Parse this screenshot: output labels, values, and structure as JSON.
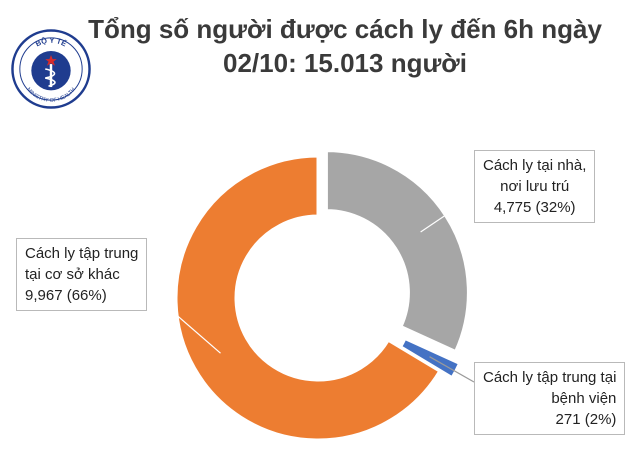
{
  "title_line1": "Tổng số người được cách ly đến 6h ngày",
  "title_line2": "02/10: 15.013 người",
  "logo": {
    "top_text": "BỘ Y TẾ",
    "bottom_text": "MINISTRY OF HEALTH",
    "color": "#1f3c8f"
  },
  "chart_data": {
    "type": "pie",
    "style": "donut",
    "title": "Tổng số người được cách ly đến 6h ngày 02/10: 15.013 người",
    "slices": [
      {
        "label_lines": [
          "Cách ly tại nhà,",
          "nơi lưu trú"
        ],
        "value": 4775,
        "value_text": "4,775 (32%)",
        "percent": 32,
        "color": "#a6a6a6"
      },
      {
        "label_lines": [
          "Cách ly tập trung tại",
          "bệnh viện"
        ],
        "value": 271,
        "value_text": "271 (2%)",
        "percent": 2,
        "color": "#4472c4"
      },
      {
        "label_lines": [
          "Cách ly tập trung",
          "tại cơ sở khác"
        ],
        "value": 9967,
        "value_text": "9,967 (66%)",
        "percent": 66,
        "color": "#ed7d31"
      }
    ]
  }
}
